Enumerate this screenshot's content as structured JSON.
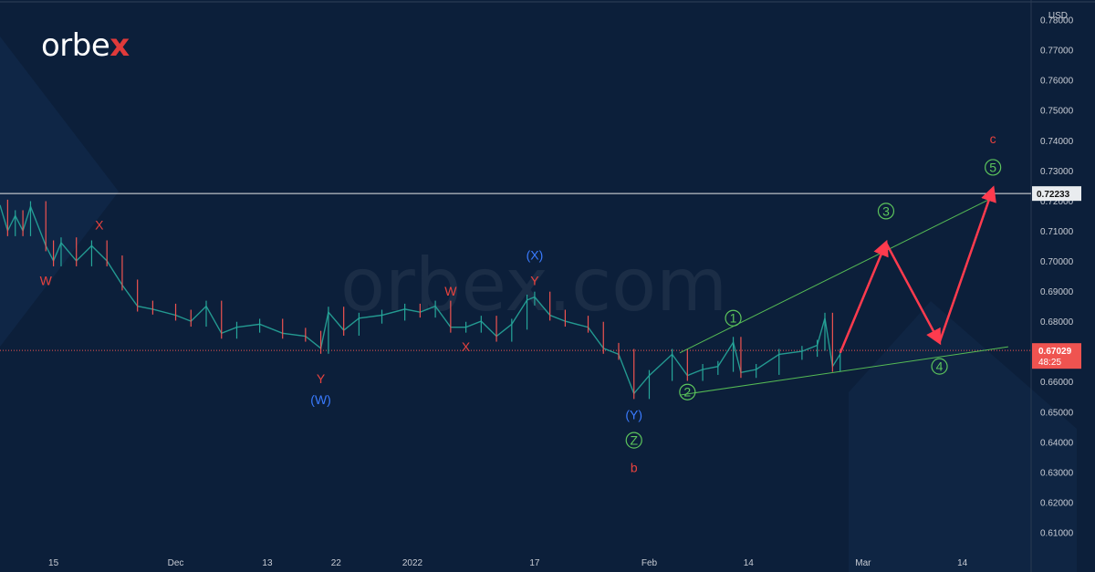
{
  "brand": {
    "logo_text": "orbe",
    "logo_accent": "x",
    "watermark": "orbex.com"
  },
  "colors": {
    "background": "#0c1f3a",
    "candle_up": "#26a69a",
    "candle_down": "#ef5350",
    "wave_red": "#e8423e",
    "wave_blue": "#3a7bff",
    "wave_green": "#5cc45c",
    "projection": "#ff3b4e",
    "trendline": "#55bb55",
    "axis_text": "#c8ccd4"
  },
  "chart_data": {
    "type": "line",
    "title": "",
    "currency": "USD",
    "ylim": [
      0.605,
      0.785
    ],
    "y_ticks": [
      "0.61000",
      "0.62000",
      "0.63000",
      "0.64000",
      "0.65000",
      "0.66000",
      "0.67000",
      "0.68000",
      "0.69000",
      "0.70000",
      "0.71000",
      "0.72000",
      "0.73000",
      "0.74000",
      "0.75000",
      "0.76000",
      "0.77000",
      "0.78000"
    ],
    "x_range": [
      "2021-11-08",
      "2022-03-23"
    ],
    "x_ticks": [
      {
        "label": "15",
        "date": "2021-11-15"
      },
      {
        "label": "Dec",
        "date": "2021-12-01"
      },
      {
        "label": "13",
        "date": "2021-12-13"
      },
      {
        "label": "22",
        "date": "2021-12-22"
      },
      {
        "label": "2022",
        "date": "2022-01-01"
      },
      {
        "label": "17",
        "date": "2022-01-17"
      },
      {
        "label": "Feb",
        "date": "2022-02-01"
      },
      {
        "label": "14",
        "date": "2022-02-14"
      },
      {
        "label": "Mar",
        "date": "2022-03-01"
      },
      {
        "label": "14",
        "date": "2022-03-14"
      }
    ],
    "price_series": [
      [
        "2021-11-08",
        0.7185
      ],
      [
        "2021-11-09",
        0.71
      ],
      [
        "2021-11-10",
        0.715
      ],
      [
        "2021-11-11",
        0.71
      ],
      [
        "2021-11-12",
        0.718
      ],
      [
        "2021-11-14",
        0.705
      ],
      [
        "2021-11-15",
        0.7
      ],
      [
        "2021-11-16",
        0.706
      ],
      [
        "2021-11-18",
        0.7
      ],
      [
        "2021-11-20",
        0.705
      ],
      [
        "2021-11-22",
        0.7
      ],
      [
        "2021-11-24",
        0.692
      ],
      [
        "2021-11-26",
        0.685
      ],
      [
        "2021-11-28",
        0.684
      ],
      [
        "2021-12-01",
        0.682
      ],
      [
        "2021-12-03",
        0.68
      ],
      [
        "2021-12-05",
        0.685
      ],
      [
        "2021-12-07",
        0.676
      ],
      [
        "2021-12-09",
        0.678
      ],
      [
        "2021-12-12",
        0.679
      ],
      [
        "2021-12-15",
        0.676
      ],
      [
        "2021-12-18",
        0.675
      ],
      [
        "2021-12-20",
        0.671
      ],
      [
        "2021-12-21",
        0.683
      ],
      [
        "2021-12-23",
        0.677
      ],
      [
        "2021-12-25",
        0.681
      ],
      [
        "2021-12-28",
        0.682
      ],
      [
        "2021-12-31",
        0.684
      ],
      [
        "2022-01-02",
        0.683
      ],
      [
        "2022-01-04",
        0.685
      ],
      [
        "2022-01-06",
        0.678
      ],
      [
        "2022-01-08",
        0.678
      ],
      [
        "2022-01-10",
        0.68
      ],
      [
        "2022-01-12",
        0.675
      ],
      [
        "2022-01-14",
        0.679
      ],
      [
        "2022-01-16",
        0.687
      ],
      [
        "2022-01-17",
        0.688
      ],
      [
        "2022-01-19",
        0.682
      ],
      [
        "2022-01-21",
        0.68
      ],
      [
        "2022-01-24",
        0.678
      ],
      [
        "2022-01-26",
        0.671
      ],
      [
        "2022-01-28",
        0.669
      ],
      [
        "2022-01-30",
        0.656
      ],
      [
        "2022-02-01",
        0.662
      ],
      [
        "2022-02-04",
        0.669
      ],
      [
        "2022-02-06",
        0.662
      ],
      [
        "2022-02-08",
        0.664
      ],
      [
        "2022-02-10",
        0.665
      ],
      [
        "2022-02-12",
        0.673
      ],
      [
        "2022-02-13",
        0.663
      ],
      [
        "2022-02-15",
        0.664
      ],
      [
        "2022-02-18",
        0.669
      ],
      [
        "2022-02-21",
        0.67
      ],
      [
        "2022-02-23",
        0.672
      ],
      [
        "2022-02-24",
        0.681
      ],
      [
        "2022-02-25",
        0.665
      ],
      [
        "2022-02-26",
        0.669
      ]
    ],
    "current_price": {
      "label": "0.67029",
      "value": 0.67029,
      "timer": "48:25"
    },
    "resistance": {
      "label": "0.72233",
      "value": 0.72233
    },
    "channel": [
      [
        [
          "2022-02-05",
          0.6695
        ],
        [
          "2022-03-18",
          0.721
        ]
      ],
      [
        [
          "2022-02-05",
          0.6555
        ],
        [
          "2022-03-20",
          0.6715
        ]
      ]
    ],
    "projection_path": [
      [
        "2022-02-26",
        0.6695
      ],
      [
        "2022-03-04",
        0.706
      ],
      [
        "2022-03-11",
        0.673
      ],
      [
        "2022-03-18",
        0.724
      ]
    ],
    "wave_labels": [
      {
        "text": "W",
        "date": "2021-11-14",
        "price": 0.692,
        "color": "wave_red"
      },
      {
        "text": "X",
        "date": "2021-11-21",
        "price": 0.7105,
        "color": "wave_red"
      },
      {
        "text": "Y",
        "date": "2021-12-20",
        "price": 0.6595,
        "color": "wave_red"
      },
      {
        "text": "(W)",
        "date": "2021-12-20",
        "price": 0.6525,
        "color": "wave_blue"
      },
      {
        "text": "W",
        "date": "2022-01-06",
        "price": 0.6885,
        "color": "wave_red"
      },
      {
        "text": "X",
        "date": "2022-01-08",
        "price": 0.67,
        "color": "wave_red"
      },
      {
        "text": "(X)",
        "date": "2022-01-17",
        "price": 0.7005,
        "color": "wave_blue"
      },
      {
        "text": "Y",
        "date": "2022-01-17",
        "price": 0.692,
        "color": "wave_red"
      },
      {
        "text": "(Y)",
        "date": "2022-01-30",
        "price": 0.6475,
        "color": "wave_blue"
      },
      {
        "text": "Z",
        "date": "2022-01-30",
        "price": 0.639,
        "color": "wave_green",
        "circled": true
      },
      {
        "text": "b",
        "date": "2022-01-30",
        "price": 0.63,
        "color": "wave_red"
      },
      {
        "text": "1",
        "date": "2022-02-12",
        "price": 0.6795,
        "color": "wave_green",
        "circled": true
      },
      {
        "text": "2",
        "date": "2022-02-06",
        "price": 0.655,
        "color": "wave_green",
        "circled": true
      },
      {
        "text": "3",
        "date": "2022-03-04",
        "price": 0.715,
        "color": "wave_green",
        "circled": true
      },
      {
        "text": "4",
        "date": "2022-03-11",
        "price": 0.6635,
        "color": "wave_green",
        "circled": true
      },
      {
        "text": "5",
        "date": "2022-03-18",
        "price": 0.7295,
        "color": "wave_green",
        "circled": true
      },
      {
        "text": "c",
        "date": "2022-03-18",
        "price": 0.739,
        "color": "wave_red"
      }
    ]
  }
}
